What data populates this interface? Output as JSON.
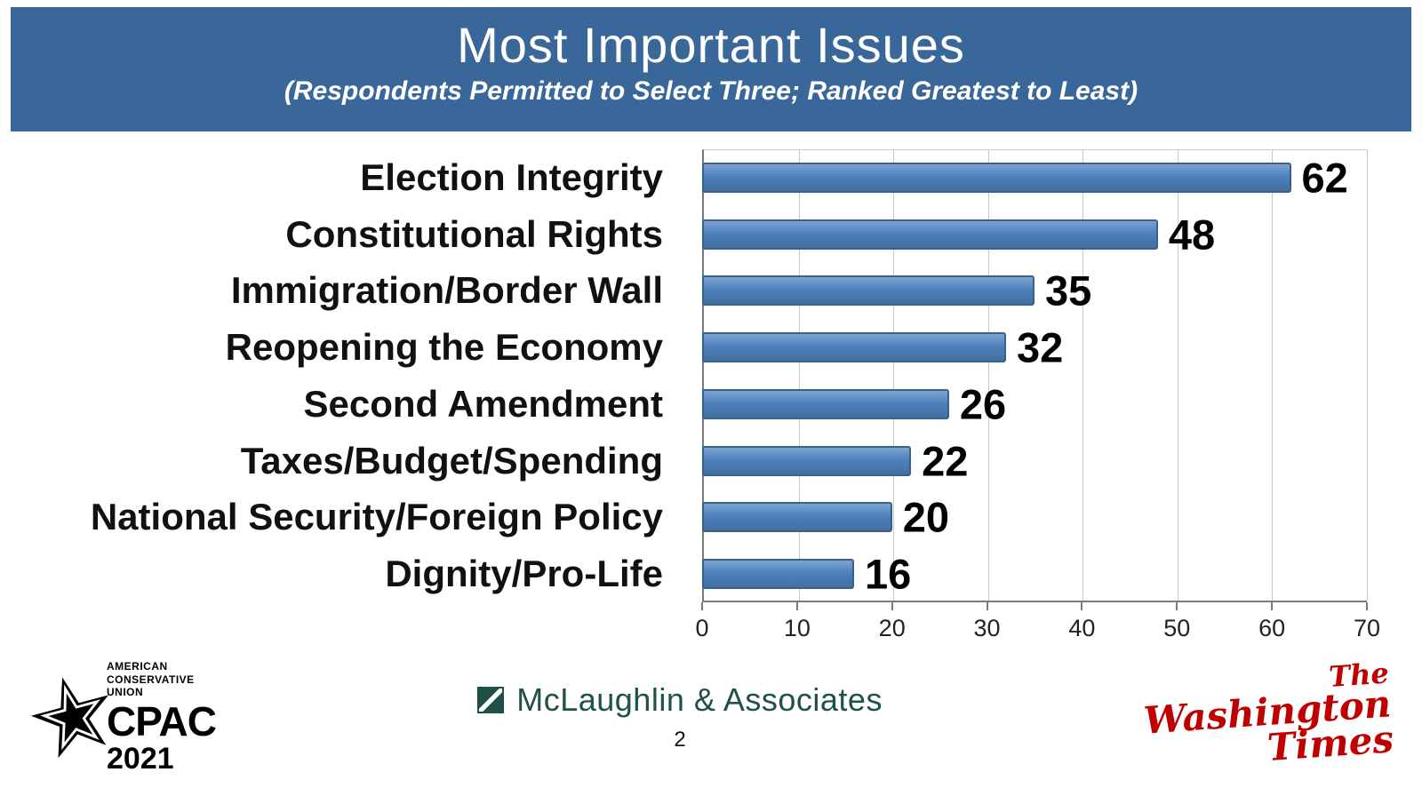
{
  "slide": {
    "title": "Most Important Issues",
    "subtitle": "(Respondents Permitted to Select Three; Ranked Greatest to Least)",
    "page_number": "2"
  },
  "chart_data": {
    "type": "bar",
    "orientation": "horizontal",
    "title": "Most Important Issues",
    "categories": [
      "Election Integrity",
      "Constitutional Rights",
      "Immigration/Border Wall",
      "Reopening the Economy",
      "Second Amendment",
      "Taxes/Budget/Spending",
      "National Security/Foreign Policy",
      "Dignity/Pro-Life"
    ],
    "values": [
      62,
      48,
      35,
      32,
      26,
      22,
      20,
      16
    ],
    "xlim": [
      0,
      70
    ],
    "xticks": [
      0,
      10,
      20,
      30,
      40,
      50,
      60,
      70
    ],
    "grid": true,
    "legend": false,
    "value_labels": true
  },
  "footer": {
    "cpac": {
      "org": [
        "AMERICAN",
        "CONSERVATIVE",
        "UNION"
      ],
      "name": "CPAC",
      "year": "2021"
    },
    "source_label": "McLaughlin & Associates",
    "newspaper": [
      "The",
      "Washington",
      "Times"
    ]
  },
  "colors": {
    "header_bg": "#39679A",
    "bar_fill": "#4F81BD",
    "bar_border": "#38618F",
    "source_text": "#1F5148",
    "newspaper_red": "#C00000"
  }
}
